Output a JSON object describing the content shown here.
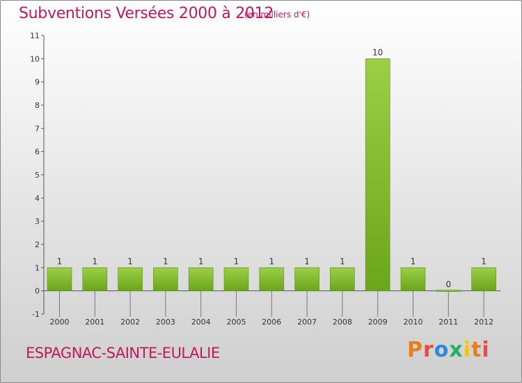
{
  "header": {
    "title": "Subventions Versées 2000 à 2012",
    "subtitle": "(en milliers d'€)"
  },
  "footer": {
    "commune": "ESPAGNAC-SAINTE-EULALIE",
    "brand": "Proxiti",
    "brand_colors": [
      "#e67e22",
      "#e74c3c",
      "#2e86de",
      "#27ae60",
      "#f1c40f",
      "#e67e22",
      "#e74c3c"
    ]
  },
  "colors": {
    "bar_light": "#9ccf47",
    "bar_dark": "#6aa51c",
    "text_accent": "#c2185b"
  },
  "chart_data": {
    "type": "bar",
    "title": "Subventions Versées 2000 à 2012",
    "subtitle": "(en milliers d'€)",
    "categories": [
      "2000",
      "2001",
      "2002",
      "2003",
      "2004",
      "2005",
      "2006",
      "2007",
      "2008",
      "2009",
      "2010",
      "2011",
      "2012"
    ],
    "values": [
      1,
      1,
      1,
      1,
      1,
      1,
      1,
      1,
      1,
      10,
      1,
      0,
      1
    ],
    "data_labels": [
      "1",
      "1",
      "1",
      "1",
      "1",
      "1",
      "1",
      "1",
      "1",
      "10",
      "1",
      "0",
      "1"
    ],
    "y_ticks": [
      "-1",
      "0",
      "1",
      "2",
      "3",
      "4",
      "5",
      "6",
      "7",
      "8",
      "9",
      "10",
      "11"
    ],
    "ylim": [
      -1,
      11
    ],
    "grid": false,
    "legend": "none"
  }
}
